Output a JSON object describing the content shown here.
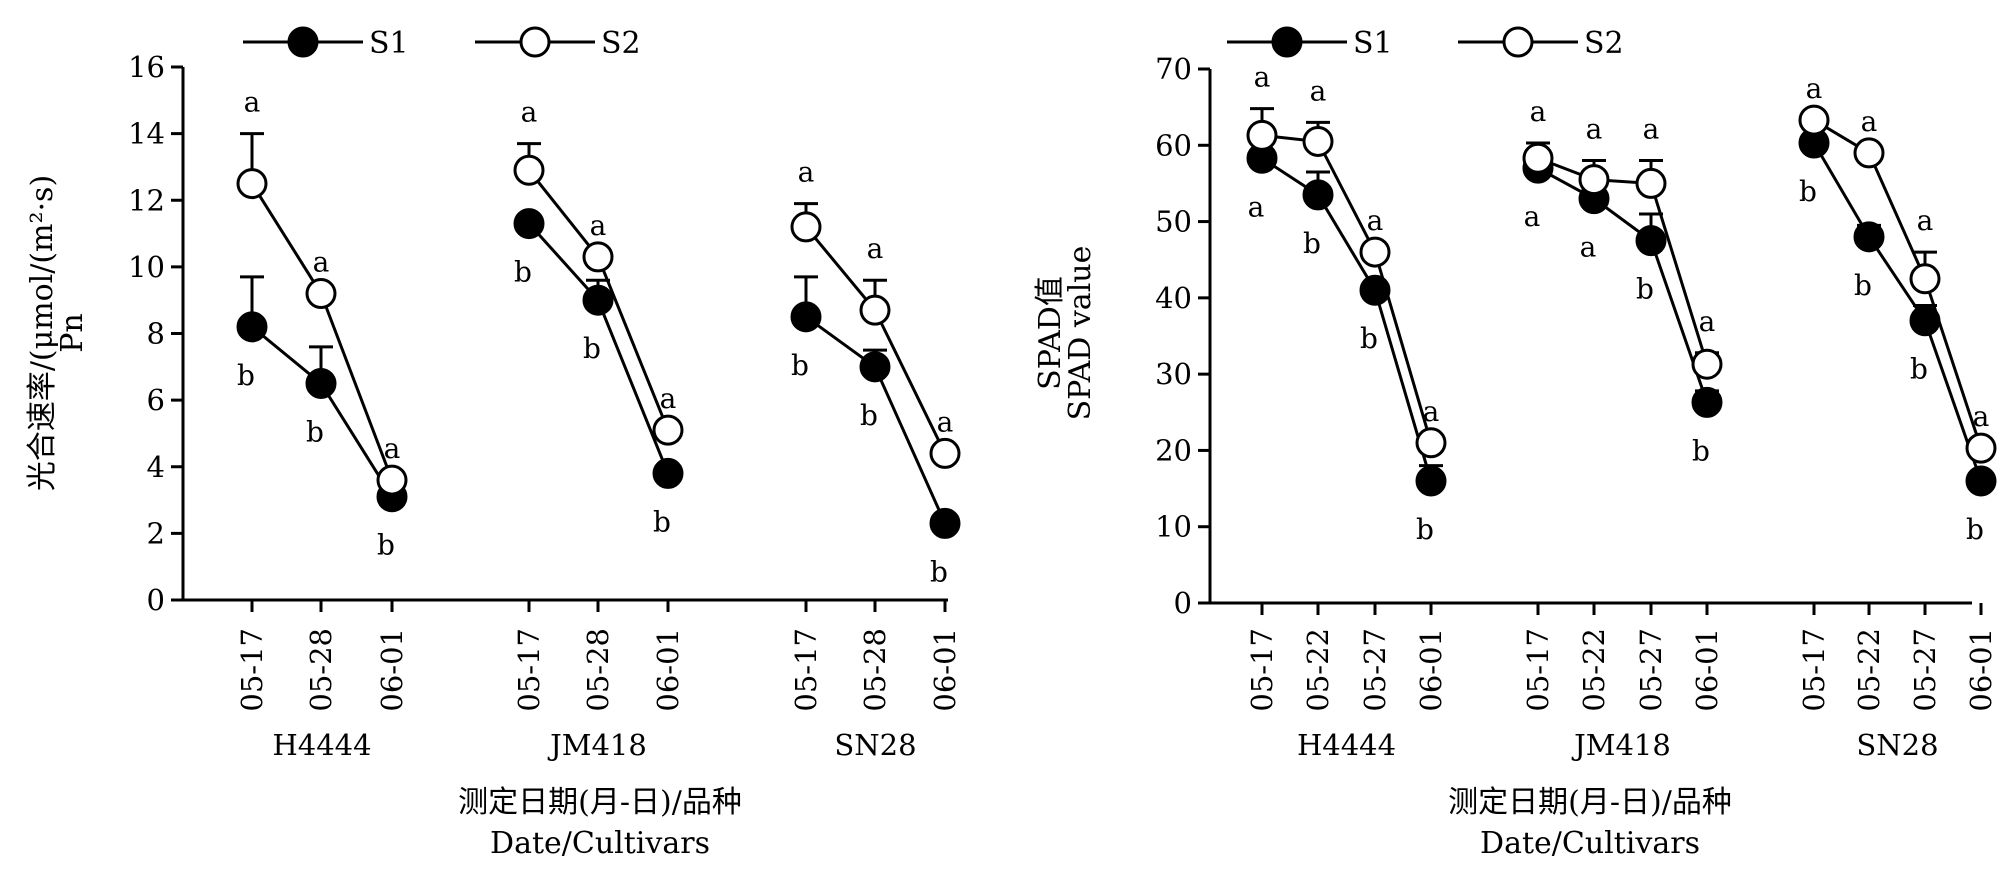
{
  "chart_data": [
    {
      "type": "line",
      "ylabel_cn": "光合速率/(μmol/(m²·s)",
      "ylabel_en": "Pn",
      "xlabel_cn": "测定日期(月-日)/品种",
      "xlabel_en": "Date/Cultivars",
      "ylim": [
        0,
        16
      ],
      "yticks": [
        0,
        2,
        4,
        6,
        8,
        10,
        12,
        14,
        16
      ],
      "legend": [
        "S1",
        "S2"
      ],
      "legend_position": "top",
      "groups": [
        {
          "name": "H4444",
          "dates": [
            "05-17",
            "05-28",
            "06-01"
          ],
          "S1": [
            8.2,
            6.5,
            3.1
          ],
          "S1_err": [
            1.5,
            1.1,
            0
          ],
          "S2": [
            12.5,
            9.2,
            3.6
          ],
          "S2_err": [
            1.5,
            0,
            0
          ],
          "S1_letters": [
            "b",
            "b",
            "b"
          ],
          "S2_letters": [
            "a",
            "a",
            "a"
          ]
        },
        {
          "name": "JM418",
          "dates": [
            "05-17",
            "05-28",
            "06-01"
          ],
          "S1": [
            11.3,
            9.0,
            3.8
          ],
          "S1_err": [
            0,
            0.6,
            0
          ],
          "S2": [
            12.9,
            10.3,
            5.1
          ],
          "S2_err": [
            0.8,
            0,
            0
          ],
          "S1_letters": [
            "b",
            "b",
            "b"
          ],
          "S2_letters": [
            "a",
            "a",
            "a"
          ]
        },
        {
          "name": "SN28",
          "dates": [
            "05-17",
            "05-28",
            "06-01"
          ],
          "S1": [
            8.5,
            7.0,
            2.3
          ],
          "S1_err": [
            1.2,
            0.5,
            0
          ],
          "S2": [
            11.2,
            8.7,
            4.4
          ],
          "S2_err": [
            0.7,
            0.9,
            0
          ],
          "S1_letters": [
            "b",
            "b",
            "b"
          ],
          "S2_letters": [
            "a",
            "a",
            "a"
          ]
        }
      ]
    },
    {
      "type": "line",
      "ylabel_cn": "SPAD值",
      "ylabel_en": "SPAD value",
      "xlabel_cn": "测定日期(月-日)/品种",
      "xlabel_en": "Date/Cultivars",
      "ylim": [
        0,
        70
      ],
      "yticks": [
        0,
        10,
        20,
        30,
        40,
        50,
        60,
        70
      ],
      "legend": [
        "S1",
        "S2"
      ],
      "legend_position": "top",
      "groups": [
        {
          "name": "H4444",
          "dates": [
            "05-17",
            "05-22",
            "05-27",
            "06-01"
          ],
          "S1": [
            58.3,
            53.5,
            41.0,
            16.0
          ],
          "S1_err": [
            0,
            3.0,
            0,
            2.0
          ],
          "S2": [
            61.3,
            60.5,
            46.0,
            21.0
          ],
          "S2_err": [
            3.5,
            2.5,
            0,
            0
          ],
          "S1_letters": [
            "a",
            "b",
            "b",
            "b"
          ],
          "S2_letters": [
            "a",
            "a",
            "a",
            "a"
          ]
        },
        {
          "name": "JM418",
          "dates": [
            "05-17",
            "05-22",
            "05-27",
            "06-01"
          ],
          "S1": [
            57.0,
            53.0,
            47.5,
            26.3
          ],
          "S1_err": [
            0,
            0,
            3.5,
            1.5
          ],
          "S2": [
            58.3,
            55.5,
            55.0,
            31.3
          ],
          "S2_err": [
            2.0,
            2.5,
            3.0,
            1.5
          ],
          "S1_letters": [
            "a",
            "a",
            "b",
            "b"
          ],
          "S2_letters": [
            "a",
            "a",
            "a",
            "a"
          ]
        },
        {
          "name": "SN28",
          "dates": [
            "05-17",
            "05-22",
            "05-27",
            "06-01"
          ],
          "S1": [
            60.3,
            48.0,
            37.0,
            16.0
          ],
          "S1_err": [
            0,
            1.5,
            2.0,
            0
          ],
          "S2": [
            63.3,
            59.0,
            42.5,
            20.3
          ],
          "S2_err": [
            0,
            0,
            3.5,
            0
          ],
          "S1_letters": [
            "b",
            "b",
            "b",
            "b"
          ],
          "S2_letters": [
            "a",
            "a",
            "a",
            "a"
          ]
        }
      ]
    }
  ]
}
